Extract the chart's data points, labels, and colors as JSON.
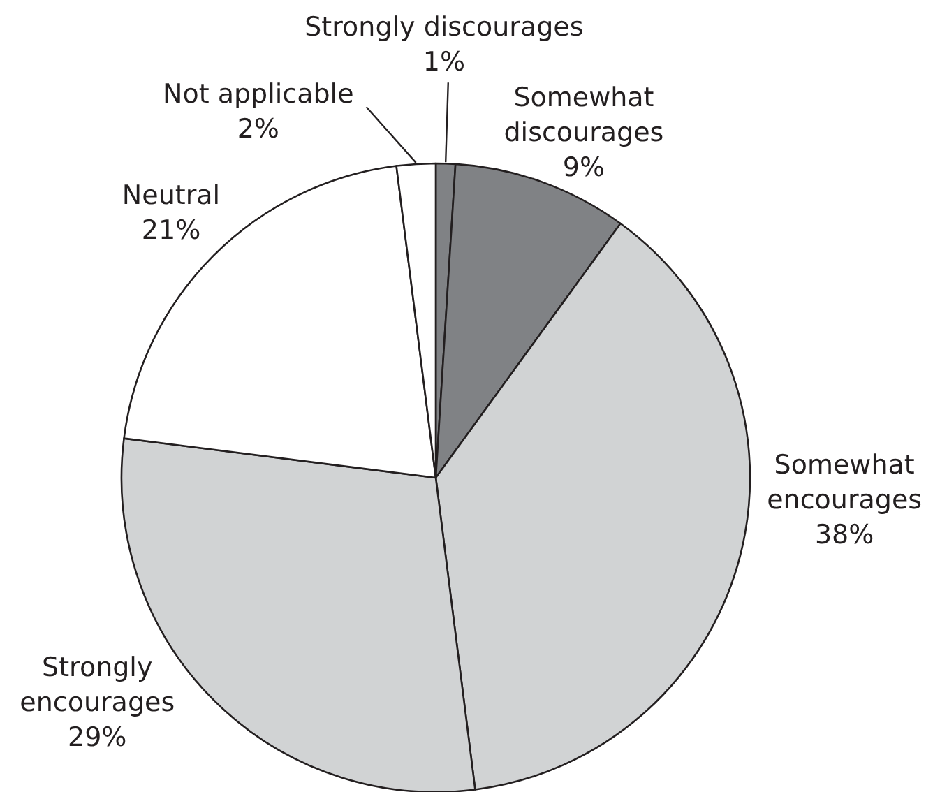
{
  "chart_data": {
    "type": "pie",
    "categories": [
      "Strongly discourages",
      "Somewhat discourages",
      "Somewhat encourages",
      "Strongly encourages",
      "Neutral",
      "Not applicable"
    ],
    "values": [
      1,
      9,
      38,
      29,
      21,
      2
    ],
    "colors": [
      "#808285",
      "#808285",
      "#d1d3d4",
      "#d1d3d4",
      "#ffffff",
      "#ffffff"
    ],
    "value_labels": [
      "1%",
      "9%",
      "38%",
      "29%",
      "21%",
      "2%"
    ]
  }
}
